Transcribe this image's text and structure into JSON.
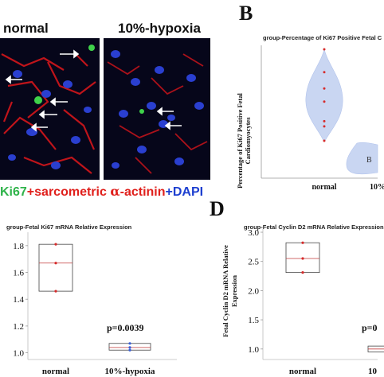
{
  "panel_a": {
    "label_left": "normal",
    "label_right": "10%-hypoxia",
    "legend": {
      "ki67": "Ki67",
      "plus1": "+",
      "sarc": "sarcometric",
      "alpha": "α",
      "actinin": "-actinin",
      "plus2": "+",
      "dapi": "DAPI"
    },
    "colors": {
      "ki67": "#2fb34a",
      "sarc": "#e0201c",
      "dapi": "#1d3fd0"
    }
  },
  "panel_b": {
    "letter": "B",
    "title": "group-Percentage of Ki67 Positive Fetal C",
    "ylabel_line1": "Percentage of Ki67 Positive Fetal",
    "ylabel_line2": "Cardiomyocytes",
    "x_labels": [
      "normal",
      "10%"
    ],
    "cut_text": "B"
  },
  "panel_c": {
    "title": "group-Fetal Ki67 mRNA Relative Expression",
    "pvalue": "p=0.0039",
    "y_ticks": [
      "1.8",
      "1.6",
      "1.4",
      "1.2",
      "1.0"
    ],
    "x_labels": [
      "normal",
      "10%-hypoxia"
    ]
  },
  "panel_d": {
    "letter": "D",
    "title": "group-Fetal Cyclin D2 mRNA Relative Expression",
    "pvalue": "p=0",
    "ylabel_line1": "Fetal Cyclin D2 mRNA Relative",
    "ylabel_line2": "Expression",
    "y_ticks": [
      "3.0",
      "2.5",
      "2.0",
      "1.5",
      "1.0"
    ],
    "x_labels": [
      "normal",
      "10"
    ]
  },
  "chart_data": [
    {
      "type": "violin",
      "title": "group-Percentage of Ki67 Positive Fetal C",
      "ylabel": "Percentage of Ki67 Positive Fetal Cardiomyocytes",
      "categories": [
        "normal",
        "10%"
      ],
      "series": [
        {
          "values": [
            25,
            21.5,
            19,
            17,
            14,
            13.2,
            11
          ]
        },
        {
          "values": []
        }
      ]
    },
    {
      "type": "box",
      "title": "group-Fetal Ki67 mRNA Relative Expression",
      "categories": [
        "normal",
        "10%-hypoxia"
      ],
      "ylim": [
        0.95,
        1.9
      ],
      "series": [
        {
          "values": [
            1.81,
            1.67,
            1.46
          ],
          "box": [
            1.46,
            1.67,
            1.81
          ]
        },
        {
          "values": [
            1.07,
            1.04,
            1.02
          ],
          "box": [
            1.02,
            1.04,
            1.07
          ]
        }
      ],
      "annotation": "p=0.0039"
    },
    {
      "type": "box",
      "title": "group-Fetal Cyclin D2 mRNA Relative Expression",
      "ylabel": "Fetal Cyclin D2 mRNA Relative Expression",
      "categories": [
        "normal",
        "10"
      ],
      "ylim": [
        0.8,
        3.0
      ],
      "series": [
        {
          "values": [
            2.82,
            2.55,
            2.31
          ],
          "box": [
            2.31,
            2.55,
            2.82
          ]
        },
        {
          "values": [],
          "box": [
            0.95,
            1.0,
            1.05
          ]
        }
      ],
      "annotation": "p=0"
    }
  ]
}
